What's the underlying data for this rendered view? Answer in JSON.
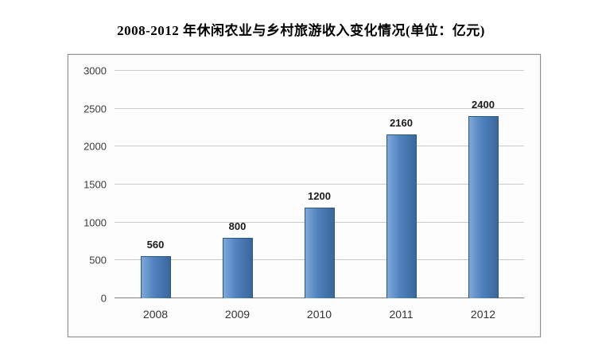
{
  "chart_data": {
    "type": "bar",
    "title": "2008-2012 年休闲农业与乡村旅游收入变化情况(单位：亿元)",
    "categories": [
      "2008",
      "2009",
      "2010",
      "2011",
      "2012"
    ],
    "values": [
      560,
      800,
      1200,
      2160,
      2400
    ],
    "xlabel": "",
    "ylabel": "",
    "ylim": [
      0,
      3000
    ],
    "yticks": [
      0,
      500,
      1000,
      1500,
      2000,
      2500,
      3000
    ],
    "grid": true,
    "legend": false,
    "colors": {
      "bar_light": "#7fa8d9",
      "bar": "#4f81bd",
      "bar_dark": "#3a679c",
      "bar_border": "#2a5783",
      "gridline": "#c8c8c8",
      "baseline": "#7f7f7f",
      "title_text": "#000000",
      "tick_text": "#3a3a3a"
    }
  }
}
